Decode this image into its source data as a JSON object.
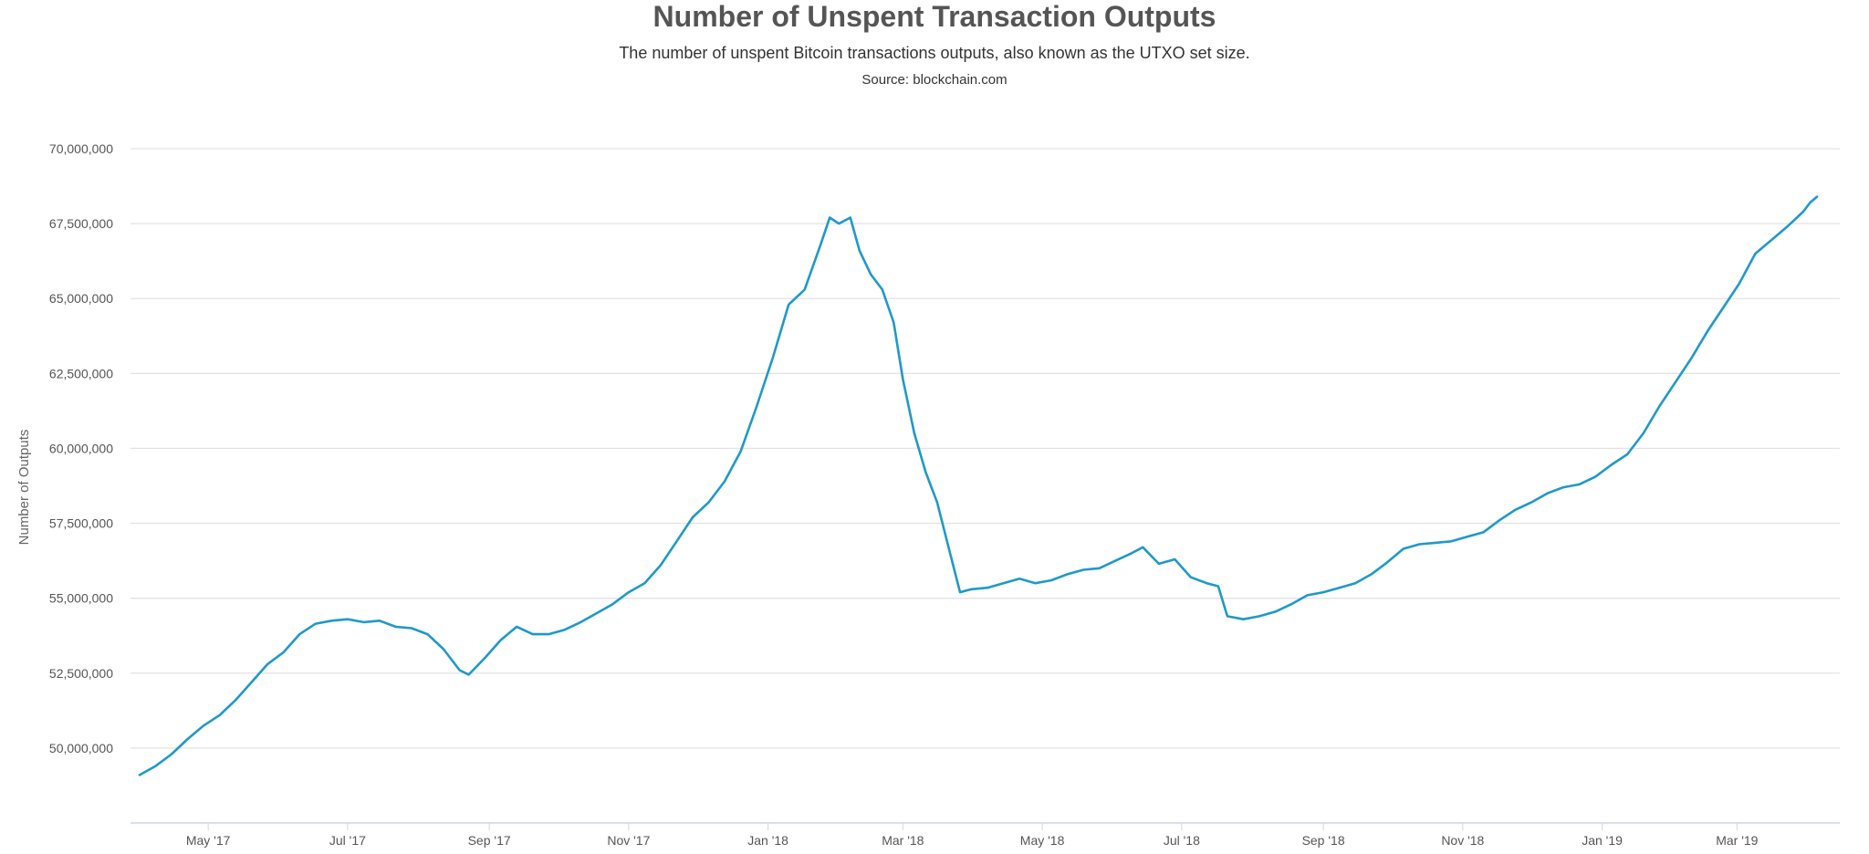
{
  "chart_data": {
    "type": "line",
    "title": "Number of Unspent Transaction Outputs",
    "subtitle": "The number of unspent Bitcoin transactions outputs, also known as the UTXO set size.",
    "source": "Source: blockchain.com",
    "xlabel": "",
    "ylabel": "Number of Outputs",
    "ylim": [
      47500000,
      70000000
    ],
    "y_ticks": [
      50000000,
      52500000,
      55000000,
      57500000,
      60000000,
      62500000,
      65000000,
      67500000,
      70000000
    ],
    "y_tick_labels": [
      "50,000,000",
      "52,500,000",
      "55,000,000",
      "57,500,000",
      "60,000,000",
      "62,500,000",
      "65,000,000",
      "67,500,000",
      "70,000,000"
    ],
    "xlim": [
      "2017-03-28",
      "2019-04-15"
    ],
    "x_ticks": [
      "2017-05-01",
      "2017-07-01",
      "2017-09-01",
      "2017-11-01",
      "2018-01-01",
      "2018-03-01",
      "2018-05-01",
      "2018-07-01",
      "2018-09-01",
      "2018-11-01",
      "2019-01-01",
      "2019-03-01"
    ],
    "x_tick_labels": [
      "May '17",
      "Jul '17",
      "Sep '17",
      "Nov '17",
      "Jan '18",
      "Mar '18",
      "May '18",
      "Jul '18",
      "Sep '18",
      "Nov '18",
      "Jan '19",
      "Mar '19"
    ],
    "grid": true,
    "legend": "none",
    "line_color": "#1f99c9",
    "series": [
      {
        "points": [
          [
            "2017-04-01",
            49100000
          ],
          [
            "2017-04-08",
            49400000
          ],
          [
            "2017-04-15",
            49800000
          ],
          [
            "2017-04-22",
            50300000
          ],
          [
            "2017-04-29",
            50750000
          ],
          [
            "2017-05-06",
            51100000
          ],
          [
            "2017-05-13",
            51600000
          ],
          [
            "2017-05-20",
            52200000
          ],
          [
            "2017-05-27",
            52800000
          ],
          [
            "2017-06-03",
            53200000
          ],
          [
            "2017-06-10",
            53800000
          ],
          [
            "2017-06-17",
            54150000
          ],
          [
            "2017-06-24",
            54250000
          ],
          [
            "2017-07-01",
            54300000
          ],
          [
            "2017-07-08",
            54200000
          ],
          [
            "2017-07-15",
            54250000
          ],
          [
            "2017-07-22",
            54050000
          ],
          [
            "2017-07-29",
            54000000
          ],
          [
            "2017-08-05",
            53800000
          ],
          [
            "2017-08-12",
            53300000
          ],
          [
            "2017-08-19",
            52600000
          ],
          [
            "2017-08-23",
            52450000
          ],
          [
            "2017-08-30",
            53000000
          ],
          [
            "2017-09-06",
            53600000
          ],
          [
            "2017-09-13",
            54050000
          ],
          [
            "2017-09-20",
            53800000
          ],
          [
            "2017-09-27",
            53800000
          ],
          [
            "2017-10-04",
            53950000
          ],
          [
            "2017-10-11",
            54200000
          ],
          [
            "2017-10-18",
            54500000
          ],
          [
            "2017-10-25",
            54800000
          ],
          [
            "2017-11-01",
            55200000
          ],
          [
            "2017-11-08",
            55500000
          ],
          [
            "2017-11-15",
            56100000
          ],
          [
            "2017-11-22",
            56900000
          ],
          [
            "2017-11-29",
            57700000
          ],
          [
            "2017-12-06",
            58200000
          ],
          [
            "2017-12-13",
            58900000
          ],
          [
            "2017-12-20",
            59900000
          ],
          [
            "2017-12-27",
            61400000
          ],
          [
            "2018-01-03",
            63000000
          ],
          [
            "2018-01-10",
            64800000
          ],
          [
            "2018-01-17",
            65300000
          ],
          [
            "2018-01-24",
            66800000
          ],
          [
            "2018-01-28",
            67700000
          ],
          [
            "2018-02-01",
            67500000
          ],
          [
            "2018-02-06",
            67700000
          ],
          [
            "2018-02-10",
            66600000
          ],
          [
            "2018-02-15",
            65800000
          ],
          [
            "2018-02-20",
            65300000
          ],
          [
            "2018-02-25",
            64200000
          ],
          [
            "2018-03-01",
            62300000
          ],
          [
            "2018-03-06",
            60500000
          ],
          [
            "2018-03-11",
            59200000
          ],
          [
            "2018-03-16",
            58200000
          ],
          [
            "2018-03-21",
            56700000
          ],
          [
            "2018-03-26",
            55200000
          ],
          [
            "2018-03-31",
            55300000
          ],
          [
            "2018-04-07",
            55350000
          ],
          [
            "2018-04-14",
            55500000
          ],
          [
            "2018-04-21",
            55650000
          ],
          [
            "2018-04-28",
            55500000
          ],
          [
            "2018-05-05",
            55600000
          ],
          [
            "2018-05-12",
            55800000
          ],
          [
            "2018-05-19",
            55950000
          ],
          [
            "2018-05-26",
            56000000
          ],
          [
            "2018-06-02",
            56250000
          ],
          [
            "2018-06-09",
            56500000
          ],
          [
            "2018-06-14",
            56700000
          ],
          [
            "2018-06-21",
            56150000
          ],
          [
            "2018-06-28",
            56300000
          ],
          [
            "2018-07-05",
            55700000
          ],
          [
            "2018-07-12",
            55500000
          ],
          [
            "2018-07-17",
            55400000
          ],
          [
            "2018-07-21",
            54400000
          ],
          [
            "2018-07-28",
            54300000
          ],
          [
            "2018-08-04",
            54400000
          ],
          [
            "2018-08-11",
            54550000
          ],
          [
            "2018-08-18",
            54800000
          ],
          [
            "2018-08-25",
            55100000
          ],
          [
            "2018-09-01",
            55200000
          ],
          [
            "2018-09-08",
            55350000
          ],
          [
            "2018-09-15",
            55500000
          ],
          [
            "2018-09-22",
            55800000
          ],
          [
            "2018-09-29",
            56200000
          ],
          [
            "2018-10-06",
            56650000
          ],
          [
            "2018-10-13",
            56800000
          ],
          [
            "2018-10-20",
            56850000
          ],
          [
            "2018-10-27",
            56900000
          ],
          [
            "2018-11-03",
            57050000
          ],
          [
            "2018-11-10",
            57200000
          ],
          [
            "2018-11-17",
            57600000
          ],
          [
            "2018-11-24",
            57950000
          ],
          [
            "2018-12-01",
            58200000
          ],
          [
            "2018-12-08",
            58500000
          ],
          [
            "2018-12-15",
            58700000
          ],
          [
            "2018-12-22",
            58800000
          ],
          [
            "2018-12-29",
            59050000
          ],
          [
            "2019-01-05",
            59450000
          ],
          [
            "2019-01-12",
            59800000
          ],
          [
            "2019-01-19",
            60500000
          ],
          [
            "2019-01-26",
            61400000
          ],
          [
            "2019-02-02",
            62200000
          ],
          [
            "2019-02-09",
            63000000
          ],
          [
            "2019-02-16",
            63900000
          ],
          [
            "2019-02-23",
            64700000
          ],
          [
            "2019-03-02",
            65500000
          ],
          [
            "2019-03-09",
            66500000
          ],
          [
            "2019-03-16",
            66950000
          ],
          [
            "2019-03-23",
            67400000
          ],
          [
            "2019-03-30",
            67900000
          ],
          [
            "2019-04-02",
            68200000
          ],
          [
            "2019-04-05",
            68400000
          ]
        ]
      }
    ]
  }
}
